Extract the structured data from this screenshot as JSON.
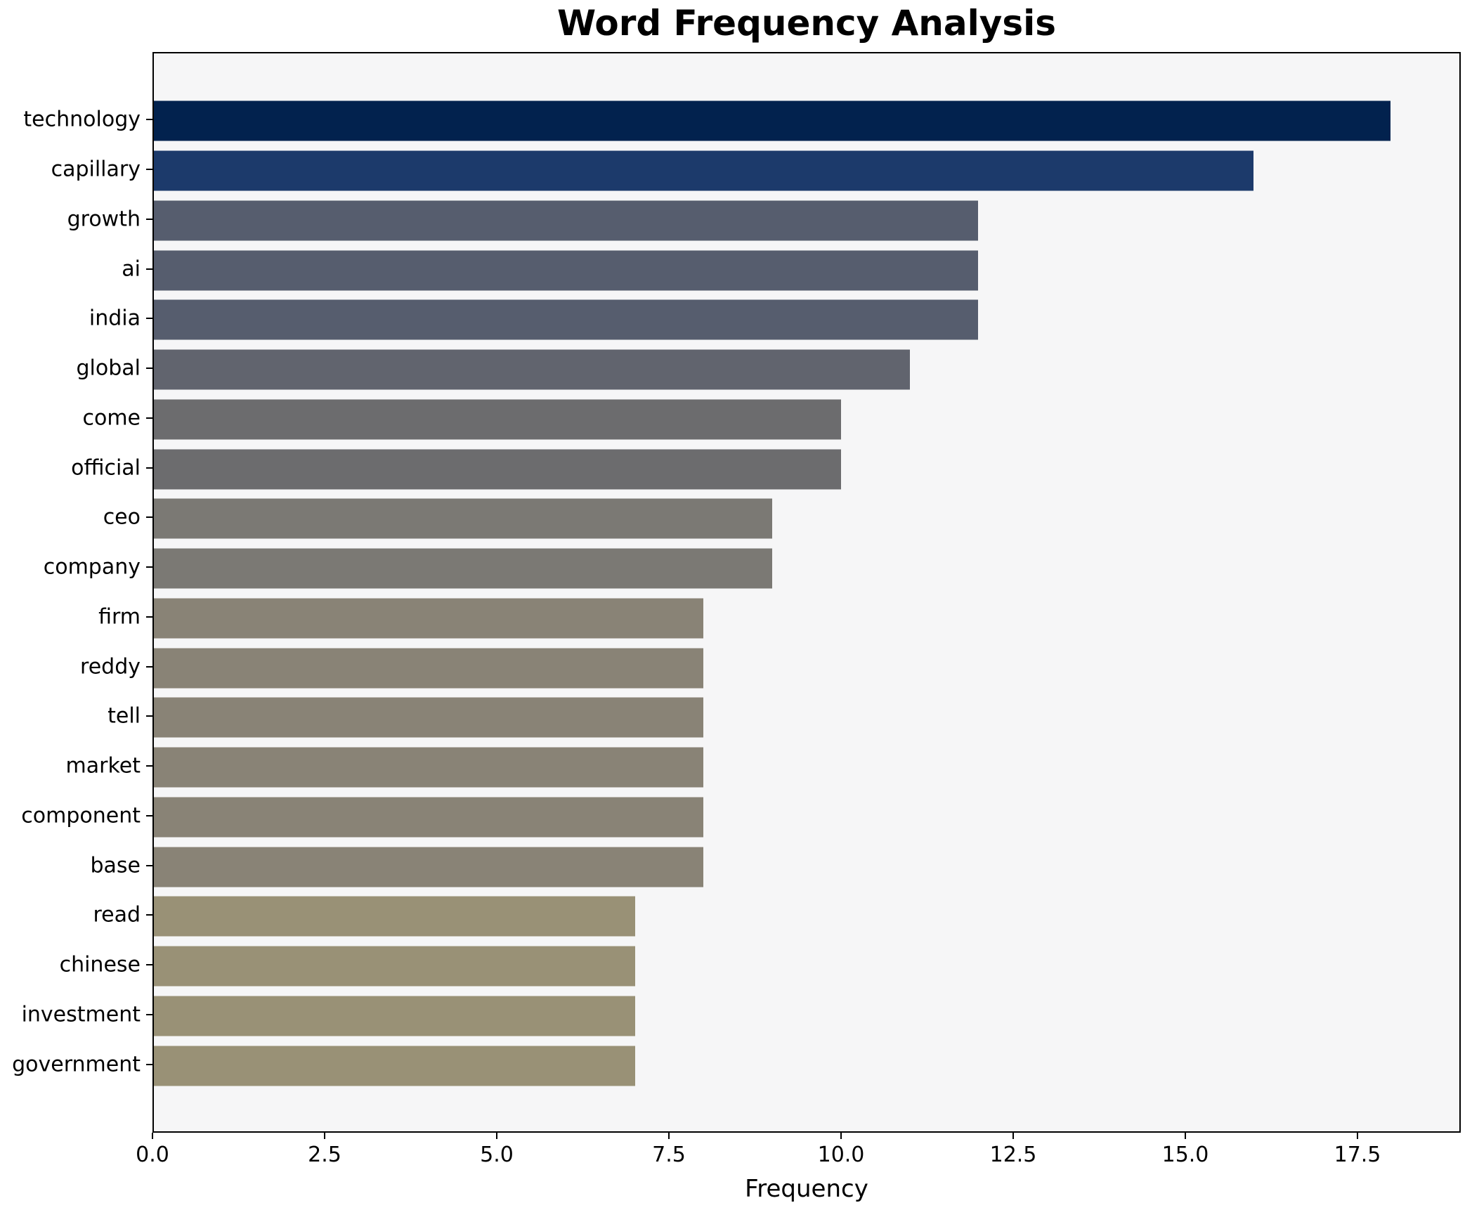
{
  "chart_data": {
    "type": "bar",
    "orientation": "horizontal",
    "title": "Word Frequency Analysis",
    "xlabel": "Frequency",
    "ylabel": "",
    "categories": [
      "technology",
      "capillary",
      "growth",
      "ai",
      "india",
      "global",
      "come",
      "official",
      "ceo",
      "company",
      "firm",
      "reddy",
      "tell",
      "market",
      "component",
      "base",
      "read",
      "chinese",
      "investment",
      "government"
    ],
    "values": [
      18,
      16,
      12,
      12,
      12,
      11,
      10,
      10,
      9,
      9,
      8,
      8,
      8,
      8,
      8,
      8,
      7,
      7,
      7,
      7
    ],
    "bar_colors": [
      "#02224e",
      "#1c3a6b",
      "#565d6e",
      "#565d6e",
      "#565d6e",
      "#61646e",
      "#6c6c6e",
      "#6c6c6e",
      "#7b7974",
      "#7b7974",
      "#898376",
      "#898376",
      "#898376",
      "#898376",
      "#898376",
      "#898376",
      "#999176",
      "#999176",
      "#999176",
      "#999176"
    ],
    "xlim": [
      0,
      19
    ],
    "xticks": [
      0,
      2.5,
      5,
      7.5,
      10,
      12.5,
      15,
      17.5
    ],
    "xtick_labels": [
      "0.0",
      "2.5",
      "5.0",
      "7.5",
      "10.0",
      "12.5",
      "15.0",
      "17.5"
    ],
    "grid": "off",
    "legend": "none",
    "plot_background": "#f6f6f7",
    "figure_background": "#ffffff",
    "spine_color": "#000000"
  }
}
